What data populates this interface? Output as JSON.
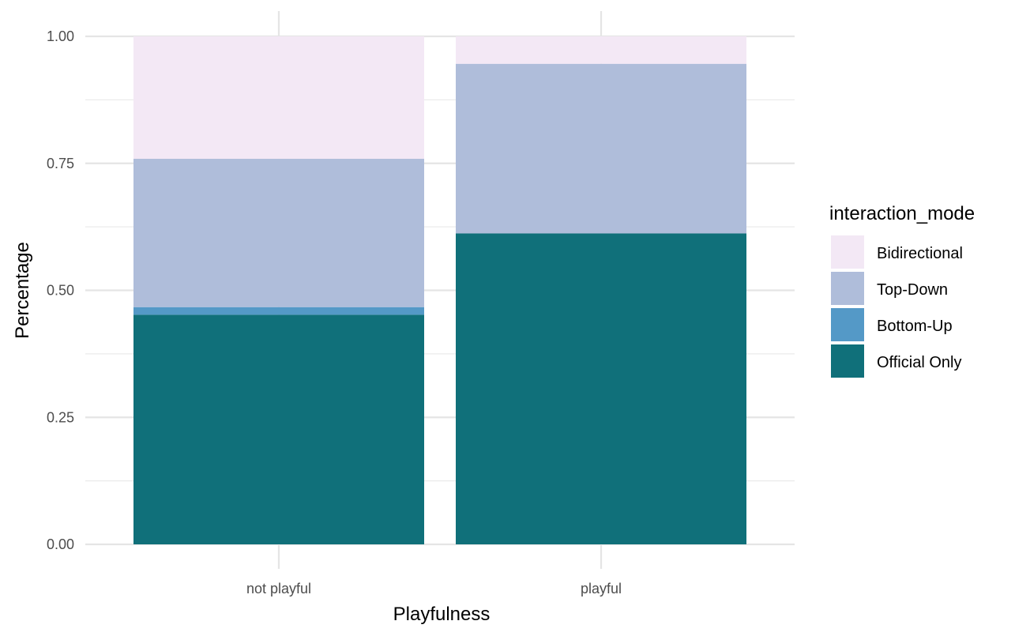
{
  "chart_data": {
    "type": "bar",
    "stacked": true,
    "categories": [
      "not playful",
      "playful"
    ],
    "series": [
      {
        "name": "Official Only",
        "values": [
          0.452,
          0.612
        ],
        "color": "#10707A"
      },
      {
        "name": "Bottom-Up",
        "values": [
          0.015,
          0.0
        ],
        "color": "#5499C7"
      },
      {
        "name": "Top-Down",
        "values": [
          0.292,
          0.334
        ],
        "color": "#AFBDDA"
      },
      {
        "name": "Bidirectional",
        "values": [
          0.241,
          0.054
        ],
        "color": "#F3E8F5"
      }
    ],
    "xlabel": "Playfulness",
    "ylabel": "Percentage",
    "ylim": [
      0,
      1
    ],
    "yticks": [
      "0.00",
      "0.25",
      "0.50",
      "0.75",
      "1.00"
    ],
    "ytick_values": [
      0,
      0.25,
      0.5,
      0.75,
      1.0
    ],
    "grid": true,
    "legend": {
      "title": "interaction_mode",
      "placement": "right",
      "order": [
        "Bidirectional",
        "Top-Down",
        "Bottom-Up",
        "Official Only"
      ]
    }
  }
}
